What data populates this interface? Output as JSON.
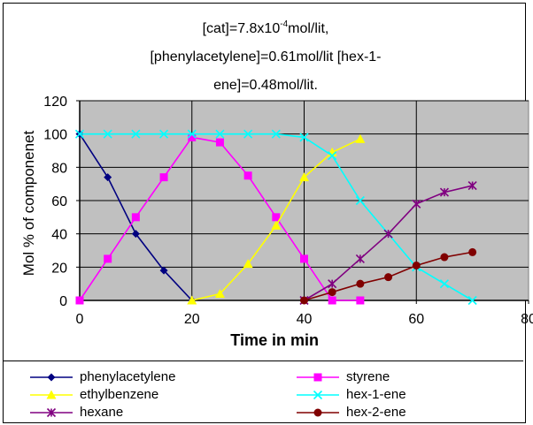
{
  "chart_data": {
    "type": "line",
    "title_parts": [
      "[cat]=7.8x10",
      "-4",
      "mol/lit,",
      "[phenylacetylene]=0.61mol/lit [hex-1-",
      "ene]=0.48mol/lit."
    ],
    "xlabel": "Time in min",
    "ylabel": "Mol % of componenet",
    "xlim": [
      0,
      80
    ],
    "ylim": [
      0,
      120
    ],
    "xticks": [
      "0",
      "20",
      "40",
      "60",
      "80"
    ],
    "yticks": [
      "0",
      "20",
      "40",
      "60",
      "80",
      "100",
      "120"
    ],
    "grid": true,
    "legend_position": "bottom",
    "series": [
      {
        "name": "phenylacetylene",
        "color": "#000080",
        "marker": "diamond",
        "x": [
          0,
          5,
          10,
          15,
          20
        ],
        "y": [
          100,
          74,
          40,
          18,
          0
        ]
      },
      {
        "name": "styrene",
        "color": "#FF00FF",
        "marker": "square",
        "x": [
          0,
          5,
          10,
          15,
          20,
          25,
          30,
          35,
          40,
          45,
          50
        ],
        "y": [
          0,
          25,
          50,
          74,
          98,
          95,
          75,
          50,
          25,
          0,
          0
        ]
      },
      {
        "name": "ethylbenzene",
        "color": "#FFFF00",
        "marker": "triangle",
        "x": [
          20,
          25,
          30,
          35,
          40,
          45,
          50
        ],
        "y": [
          0,
          4,
          22,
          45,
          74,
          89,
          97
        ]
      },
      {
        "name": "hex-1-ene",
        "color": "#00FFFF",
        "marker": "x",
        "x": [
          0,
          5,
          10,
          15,
          20,
          25,
          30,
          35,
          40,
          45,
          50,
          55,
          60,
          65,
          70
        ],
        "y": [
          100,
          100,
          100,
          100,
          100,
          100,
          100,
          100,
          98,
          87,
          60,
          40,
          20,
          10,
          0
        ]
      },
      {
        "name": "hexane",
        "color": "#800080",
        "marker": "star",
        "x": [
          40,
          45,
          50,
          55,
          60,
          65,
          70
        ],
        "y": [
          0,
          10,
          25,
          40,
          58,
          65,
          69
        ]
      },
      {
        "name": "hex-2-ene",
        "color": "#800000",
        "marker": "circle",
        "x": [
          40,
          45,
          50,
          55,
          60,
          65,
          70
        ],
        "y": [
          0,
          5,
          10,
          14,
          21,
          26,
          29
        ]
      }
    ]
  }
}
